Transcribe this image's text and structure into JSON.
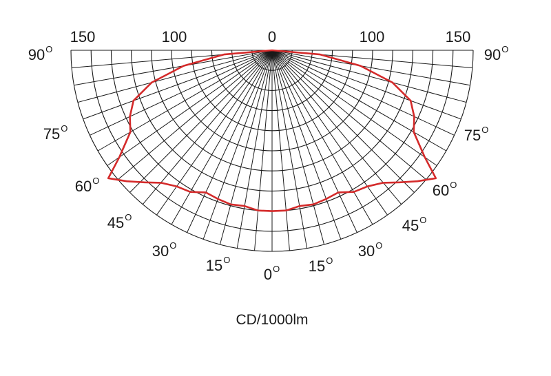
{
  "chart_data": {
    "type": "polar",
    "orientation": "downward-semicircle",
    "radial_unit_label": "CD/1000lm",
    "radial_ticks": [
      "150",
      "100",
      "0",
      "100",
      "150"
    ],
    "r_max": 150,
    "radial_grid_step": 15,
    "angle_labels_left": [
      "90",
      "75",
      "60",
      "45",
      "30",
      "15",
      "0"
    ],
    "angle_labels_right": [
      "90",
      "75",
      "60",
      "45",
      "30",
      "15"
    ],
    "degree_symbol": "O",
    "angle_grid_step_deg": 5,
    "series": [
      {
        "color": "#d42a2a",
        "points": [
          {
            "angle": -90,
            "value": 0
          },
          {
            "angle": -85,
            "value": 36
          },
          {
            "angle": -80,
            "value": 67
          },
          {
            "angle": -75,
            "value": 93
          },
          {
            "angle": -70,
            "value": 110
          },
          {
            "angle": -65,
            "value": 117
          },
          {
            "angle": -60,
            "value": 122
          },
          {
            "angle": -55,
            "value": 139
          },
          {
            "angle": -52,
            "value": 155
          },
          {
            "angle": -48,
            "value": 146
          },
          {
            "angle": -44,
            "value": 137
          },
          {
            "angle": -40,
            "value": 129
          },
          {
            "angle": -35,
            "value": 124
          },
          {
            "angle": -30,
            "value": 122
          },
          {
            "angle": -25,
            "value": 117
          },
          {
            "angle": -20,
            "value": 118
          },
          {
            "angle": -15,
            "value": 119
          },
          {
            "angle": -10,
            "value": 118
          },
          {
            "angle": -5,
            "value": 120
          },
          {
            "angle": 0,
            "value": 120
          },
          {
            "angle": 5,
            "value": 120
          },
          {
            "angle": 10,
            "value": 118
          },
          {
            "angle": 15,
            "value": 119
          },
          {
            "angle": 20,
            "value": 118
          },
          {
            "angle": 25,
            "value": 117
          },
          {
            "angle": 30,
            "value": 122
          },
          {
            "angle": 35,
            "value": 124
          },
          {
            "angle": 40,
            "value": 129
          },
          {
            "angle": 44,
            "value": 137
          },
          {
            "angle": 48,
            "value": 146
          },
          {
            "angle": 52,
            "value": 155
          },
          {
            "angle": 55,
            "value": 139
          },
          {
            "angle": 60,
            "value": 122
          },
          {
            "angle": 65,
            "value": 117
          },
          {
            "angle": 70,
            "value": 110
          },
          {
            "angle": 75,
            "value": 93
          },
          {
            "angle": 80,
            "value": 67
          },
          {
            "angle": 85,
            "value": 36
          },
          {
            "angle": 90,
            "value": 0
          }
        ]
      }
    ]
  }
}
